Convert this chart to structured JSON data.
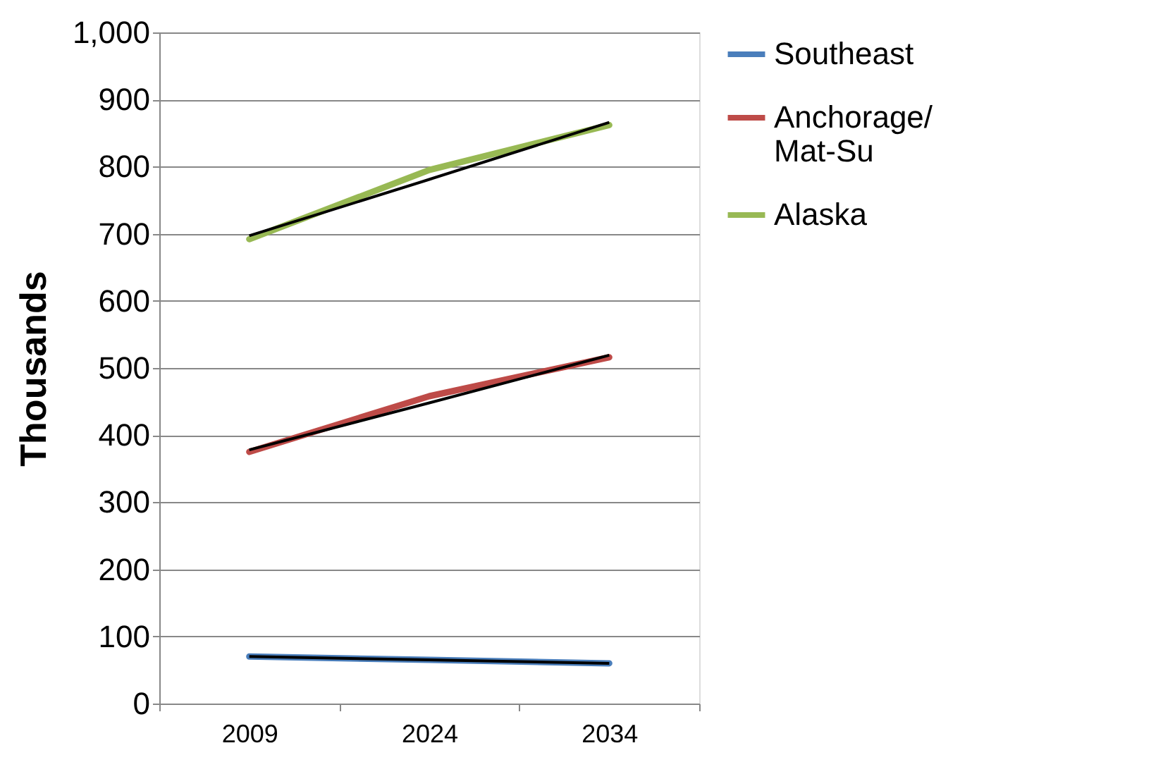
{
  "chart_data": {
    "type": "line",
    "ylabel": "Thousands",
    "categories": [
      "2009",
      "2024",
      "2034"
    ],
    "ylim": [
      0,
      1000
    ],
    "yticks": [
      0,
      {
        "value": 100,
        "label": "100"
      },
      200,
      300,
      400,
      500,
      600,
      700,
      800,
      900,
      {
        "value": 1000,
        "label": "1,000"
      }
    ],
    "grid": "y",
    "legend": "right",
    "marker": "none",
    "line_style": "solid",
    "series": [
      {
        "name": "Southeast",
        "color": "#4a7ebb",
        "values": [
          70,
          65,
          60
        ]
      },
      {
        "name": "Anchorage/Mat-Su",
        "color": "#be4b48",
        "values": [
          375,
          458,
          516
        ]
      },
      {
        "name": "Alaska",
        "color": "#98b954",
        "values": [
          692,
          795,
          862
        ]
      },
      {
        "color": "#000000",
        "values": [
          70,
          65,
          60
        ]
      },
      {
        "color": "#000000",
        "values": [
          378,
          448,
          519
        ]
      },
      {
        "color": "#000000",
        "values": [
          697,
          781,
          866
        ]
      }
    ]
  }
}
